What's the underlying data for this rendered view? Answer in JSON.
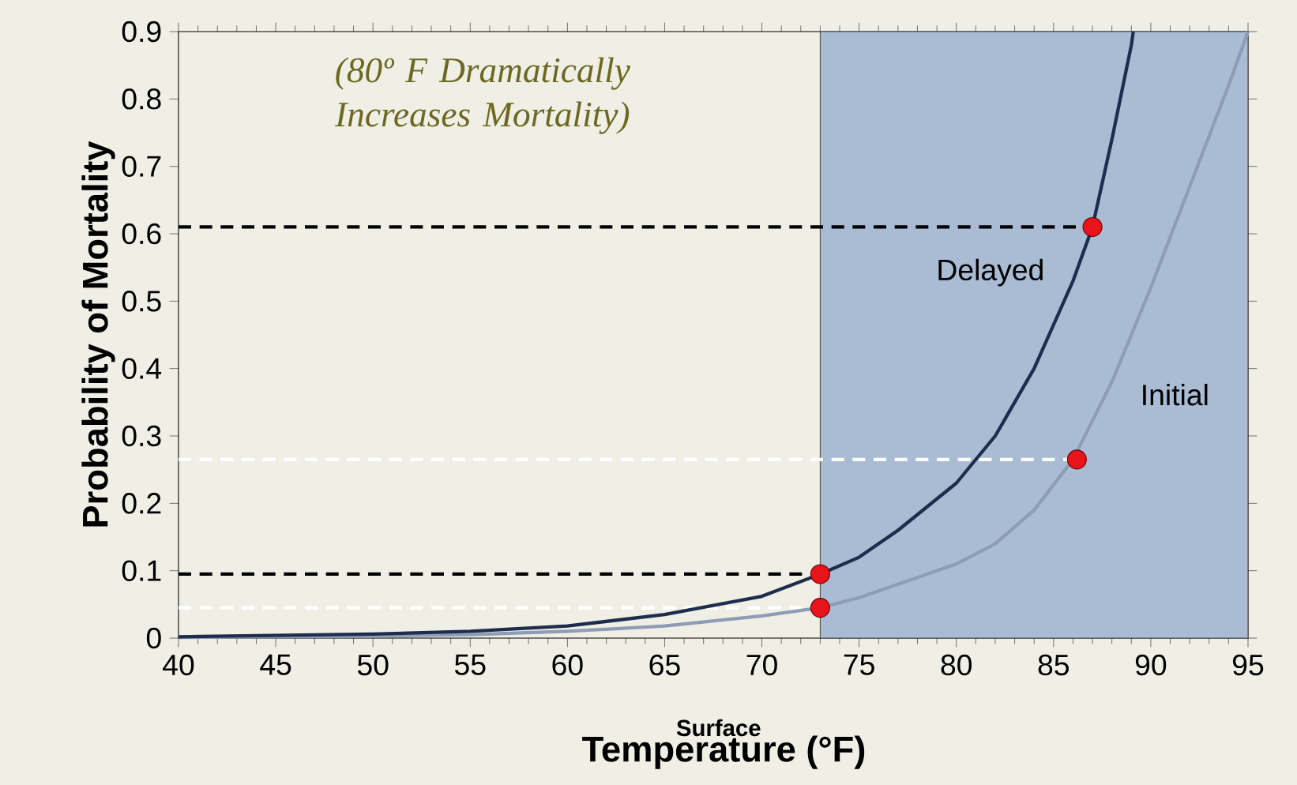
{
  "chart_data": {
    "type": "line",
    "xlabel": "Temperature (°F)",
    "ylabel": "Probability of Mortality",
    "xlim": [
      40,
      95
    ],
    "ylim": [
      0,
      0.9
    ],
    "xticks": [
      40,
      45,
      50,
      55,
      60,
      65,
      70,
      75,
      80,
      85,
      90,
      95
    ],
    "yticks": [
      0,
      0.1,
      0.2,
      0.3,
      0.4,
      0.5,
      0.6,
      0.7,
      0.8,
      0.9
    ],
    "grid": false,
    "line_style": "solid",
    "bands": [
      {
        "axis": "x",
        "from": 73,
        "to": 95,
        "color": "#a9bcd4"
      }
    ],
    "series": [
      {
        "type": "line",
        "line_style": "dashed",
        "color": "#000000",
        "x": [
          40,
          87
        ],
        "values": [
          0.61,
          0.61
        ]
      },
      {
        "type": "line",
        "line_style": "dashed",
        "color": "#000000",
        "x": [
          40,
          73
        ],
        "values": [
          0.095,
          0.095
        ]
      },
      {
        "type": "line",
        "line_style": "dashed",
        "color": "#ffffff",
        "x": [
          40,
          86.2
        ],
        "values": [
          0.265,
          0.265
        ]
      },
      {
        "type": "line",
        "line_style": "dashed",
        "color": "#ffffff",
        "x": [
          40,
          73
        ],
        "values": [
          0.045,
          0.045
        ]
      },
      {
        "name": "Initial",
        "color": "#8e9db5",
        "x": [
          40,
          50,
          55,
          60,
          65,
          70,
          73,
          75,
          78,
          80,
          82,
          84,
          86,
          88,
          90,
          92,
          94,
          95
        ],
        "values": [
          0.001,
          0.003,
          0.005,
          0.01,
          0.018,
          0.033,
          0.045,
          0.06,
          0.09,
          0.11,
          0.14,
          0.19,
          0.265,
          0.38,
          0.52,
          0.67,
          0.82,
          0.9
        ]
      },
      {
        "name": "Delayed",
        "color": "#1e2d4d",
        "x": [
          40,
          50,
          55,
          60,
          65,
          70,
          73,
          75,
          77,
          80,
          82,
          84,
          86,
          87,
          88,
          89,
          89.1
        ],
        "values": [
          0.002,
          0.006,
          0.01,
          0.018,
          0.035,
          0.062,
          0.095,
          0.12,
          0.16,
          0.23,
          0.3,
          0.4,
          0.53,
          0.61,
          0.74,
          0.88,
          0.9
        ]
      },
      {
        "type": "scatter",
        "color": "#e8141a",
        "x": [
          73,
          73,
          86.2,
          87
        ],
        "values": [
          0.095,
          0.045,
          0.265,
          0.61
        ]
      }
    ],
    "annotations": [
      "(80º F Dramatically Increases Mortality)",
      "Surface"
    ]
  }
}
